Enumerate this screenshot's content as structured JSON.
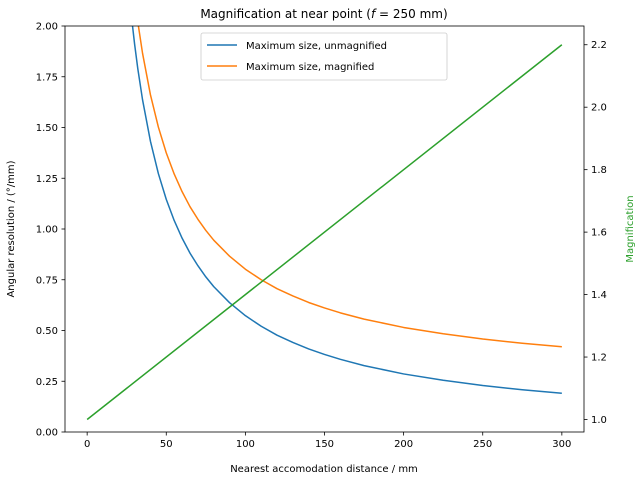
{
  "chart_data": {
    "type": "line",
    "title": "Magnification at near point (f = 250 mm)",
    "xlabel": "Nearest accomodation distance / mm",
    "ylabel_left": "Angular resolution / (°/mm)",
    "ylabel_right": "Magnification",
    "xlim": [
      -14,
      314
    ],
    "ylim_left": [
      0,
      2.0
    ],
    "ylim_right": [
      0.96,
      2.26
    ],
    "x_ticks": [
      0,
      50,
      100,
      150,
      200,
      250,
      300
    ],
    "y_left_ticks": [
      "0.00",
      "0.25",
      "0.50",
      "0.75",
      "1.00",
      "1.25",
      "1.50",
      "1.75",
      "2.00"
    ],
    "y_right_ticks": [
      "1.0",
      "1.2",
      "1.4",
      "1.6",
      "1.8",
      "2.0",
      "2.2"
    ],
    "legend_placement": "upper center",
    "grid": false,
    "series": [
      {
        "name": "Maximum size, unmagnified",
        "axis": "left",
        "color": "#1f77b4",
        "x": [
          28,
          30,
          32,
          35,
          40,
          45,
          50,
          55,
          60,
          65,
          70,
          75,
          80,
          90,
          100,
          110,
          120,
          130,
          140,
          150,
          160,
          175,
          200,
          225,
          250,
          275,
          300
        ],
        "y": [
          2.046,
          1.91,
          1.79,
          1.637,
          1.432,
          1.273,
          1.146,
          1.042,
          0.955,
          0.881,
          0.819,
          0.764,
          0.716,
          0.637,
          0.573,
          0.521,
          0.477,
          0.441,
          0.409,
          0.382,
          0.358,
          0.327,
          0.286,
          0.255,
          0.229,
          0.208,
          0.191
        ]
      },
      {
        "name": "Maximum size, magnified",
        "axis": "left",
        "color": "#ff7f0e",
        "x": [
          32,
          35,
          40,
          45,
          50,
          55,
          60,
          65,
          70,
          75,
          80,
          90,
          100,
          110,
          120,
          130,
          140,
          150,
          160,
          175,
          200,
          225,
          250,
          275,
          300
        ],
        "y": [
          2.02,
          1.866,
          1.661,
          1.502,
          1.375,
          1.271,
          1.184,
          1.11,
          1.048,
          0.993,
          0.945,
          0.866,
          0.802,
          0.75,
          0.706,
          0.67,
          0.638,
          0.611,
          0.587,
          0.556,
          0.515,
          0.484,
          0.458,
          0.437,
          0.42
        ]
      },
      {
        "name": "Magnification",
        "axis": "right",
        "color": "#2ca02c",
        "x": [
          0,
          300
        ],
        "y": [
          1.0,
          2.2
        ]
      }
    ]
  }
}
